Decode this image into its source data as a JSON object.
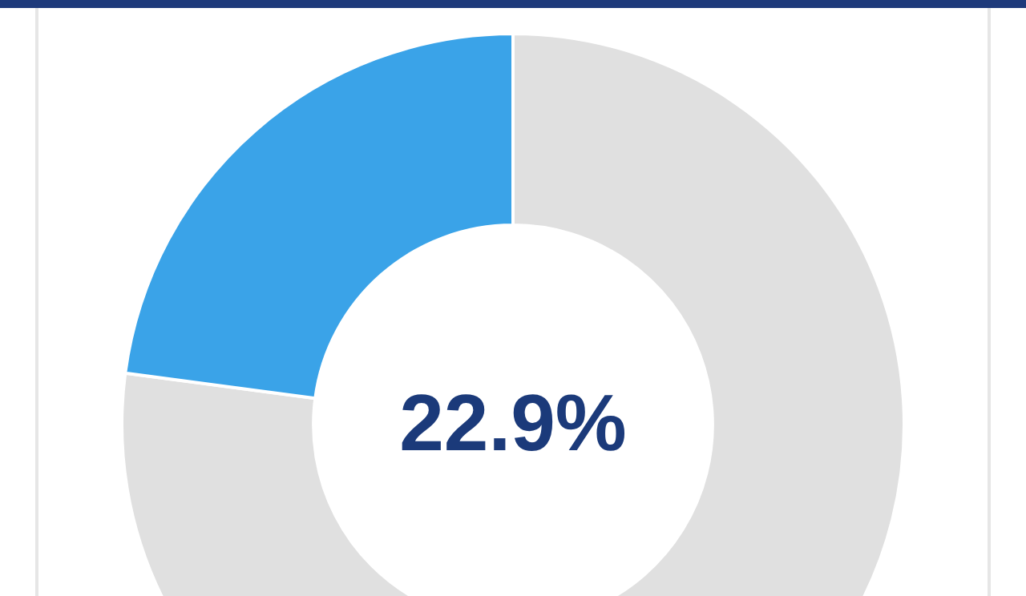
{
  "chart_data": {
    "type": "donut",
    "categories": [
      null,
      null
    ],
    "values": [
      77.1,
      22.9
    ],
    "colors": [
      "#e0e0e0",
      "#3aa3e8"
    ],
    "value_labels": [
      null,
      "22.9%"
    ],
    "legend": false
  }
}
